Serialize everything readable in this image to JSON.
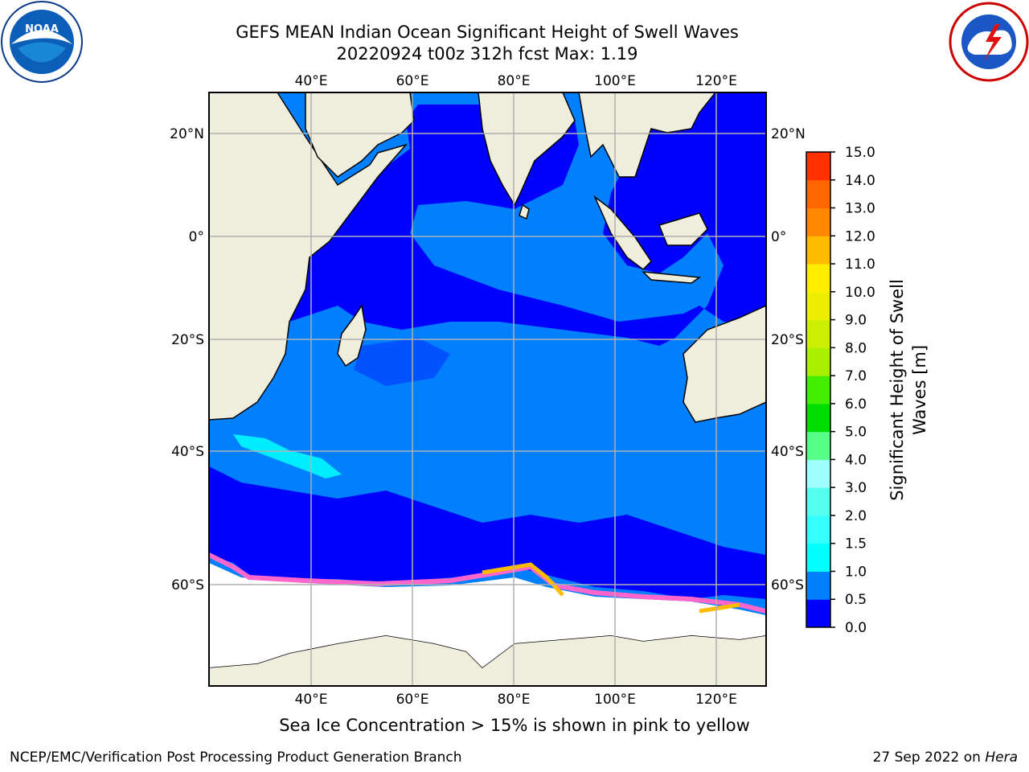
{
  "title": {
    "line1": "GEFS MEAN Indian Ocean Significant Height of Swell Waves",
    "line2": "20220924 t00z 312h fcst   Max: 1.19"
  },
  "logos": {
    "left": "NOAA",
    "right": "NATIONAL WEATHER SERVICE"
  },
  "map": {
    "lon_labels": [
      "40°E",
      "60°E",
      "80°E",
      "100°E",
      "120°E"
    ],
    "lat_labels": [
      "20°N",
      "0°",
      "20°S",
      "40°S",
      "60°S"
    ],
    "extent": {
      "lon": [
        20,
        130
      ],
      "lat": [
        -72,
        27
      ]
    },
    "colors": {
      "land": "#efeedd",
      "ice_free_ocean_low": "#0000ff",
      "ocean_mid": "#0080ff",
      "swell_cyan": "#00ffff",
      "ice": "#ffffff",
      "ice_edge": "#ff66cc"
    }
  },
  "colorbar": {
    "label_line1": "Significant Height of Swell",
    "label_line2": "Waves [m]",
    "ticks": [
      "0.0",
      "0.5",
      "1.0",
      "1.5",
      "2.0",
      "3.0",
      "4.0",
      "5.0",
      "6.0",
      "7.0",
      "8.0",
      "9.0",
      "10.0",
      "11.0",
      "12.0",
      "13.0",
      "14.0",
      "15.0"
    ],
    "colors": [
      "#0000ff",
      "#0080ff",
      "#00ffff",
      "#33ffff",
      "#55ffee",
      "#a0ffff",
      "#55ff88",
      "#00dd00",
      "#44ee00",
      "#aaee00",
      "#ccee00",
      "#eeee00",
      "#ffee00",
      "#ffbb00",
      "#ff8800",
      "#ff6600",
      "#ff3300",
      "#ff0000"
    ]
  },
  "footer": {
    "note": "Sea Ice Concentration > 15% is shown in pink to yellow",
    "credit": "NCEP/EMC/Verification Post Processing Product Generation Branch",
    "date_prefix": "27 Sep 2022 on ",
    "date_machine": "Hera"
  }
}
